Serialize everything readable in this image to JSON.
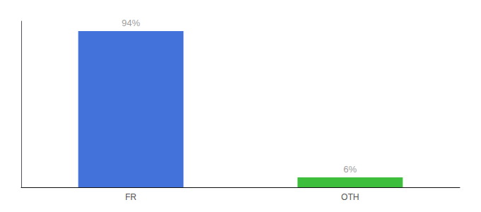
{
  "chart_data": {
    "type": "bar",
    "categories": [
      "FR",
      "OTH"
    ],
    "values": [
      94,
      6
    ],
    "value_labels": [
      "94%",
      "6%"
    ],
    "colors": [
      "#4472db",
      "#3dbf3d"
    ],
    "ylim": [
      0,
      100
    ],
    "grid": false,
    "data_labels": true,
    "tick_labels": "x"
  }
}
